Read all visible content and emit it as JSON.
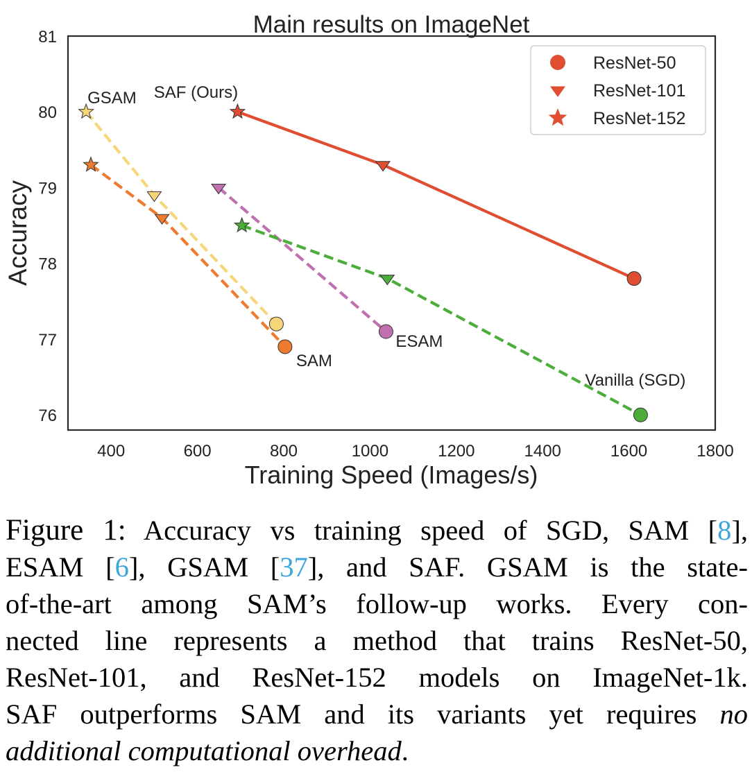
{
  "chart_data": {
    "type": "line",
    "title": "Main results on ImageNet",
    "xlabel": "Training Speed (Images/s)",
    "ylabel": "Accuracy",
    "xlim": [
      300,
      1800
    ],
    "ylim": [
      75.8,
      81
    ],
    "xticks": [
      400,
      600,
      800,
      1000,
      1200,
      1400,
      1600,
      1800
    ],
    "yticks": [
      76,
      77,
      78,
      79,
      80,
      81
    ],
    "grid": false,
    "legend": {
      "placement": "top-right",
      "entries": [
        {
          "label": "ResNet-50",
          "marker": "circle"
        },
        {
          "label": "ResNet-101",
          "marker": "triangle-down"
        },
        {
          "label": "ResNet-152",
          "marker": "star"
        }
      ],
      "color": "#e04e32"
    },
    "series": [
      {
        "method": "SAF",
        "label": "SAF (Ours)",
        "color": "#e04e32",
        "line_style": "solid",
        "points": [
          {
            "model": "ResNet-152",
            "x": 693,
            "y": 80.0
          },
          {
            "model": "ResNet-101",
            "x": 1030,
            "y": 79.3
          },
          {
            "model": "ResNet-50",
            "x": 1612,
            "y": 77.8
          }
        ]
      },
      {
        "method": "GSAM",
        "label": "GSAM",
        "color": "#f7d67a",
        "line_style": "dashed",
        "points": [
          {
            "model": "ResNet-152",
            "x": 342,
            "y": 80.0
          },
          {
            "model": "ResNet-101",
            "x": 500,
            "y": 78.9
          },
          {
            "model": "ResNet-50",
            "x": 783,
            "y": 77.2
          }
        ]
      },
      {
        "method": "SAM",
        "label": "SAM",
        "color": "#ee7b30",
        "line_style": "dashed",
        "points": [
          {
            "model": "ResNet-152",
            "x": 353,
            "y": 79.3
          },
          {
            "model": "ResNet-101",
            "x": 518,
            "y": 78.6
          },
          {
            "model": "ResNet-50",
            "x": 803,
            "y": 76.9
          }
        ]
      },
      {
        "method": "ESAM",
        "label": "ESAM",
        "color": "#c070ae",
        "line_style": "dashed",
        "points": [
          {
            "model": "ResNet-101",
            "x": 649,
            "y": 79.0
          },
          {
            "model": "ResNet-50",
            "x": 1037,
            "y": 77.1
          }
        ]
      },
      {
        "method": "SGD",
        "label": "Vanilla (SGD)",
        "color": "#4cad3a",
        "line_style": "dashed",
        "points": [
          {
            "model": "ResNet-152",
            "x": 703,
            "y": 78.5
          },
          {
            "model": "ResNet-101",
            "x": 1040,
            "y": 77.8
          },
          {
            "model": "ResNet-50",
            "x": 1627,
            "y": 76.0
          }
        ]
      }
    ]
  },
  "caption": {
    "fig_label": "Figure 1:",
    "line1": " Accuracy vs training speed of SGD, SAM [",
    "cite_sam": "8",
    "line1_end": "],",
    "line2_a": "ESAM [",
    "cite_esam": "6",
    "line2_b": "], GSAM [",
    "cite_gsam": "37",
    "line2_c": "], and SAF. GSAM is the state-",
    "line3": "of-the-art among SAM’s follow-up works. Every con-",
    "line4": "nected line represents a method that trains ResNet-50,",
    "line5": "ResNet-101, and ResNet-152 models on ImageNet-1k.",
    "line6": "SAF outperforms SAM and its variants yet requires ",
    "line6_em": "no",
    "line7_em": "additional computational overhead",
    "line7_end": "."
  }
}
